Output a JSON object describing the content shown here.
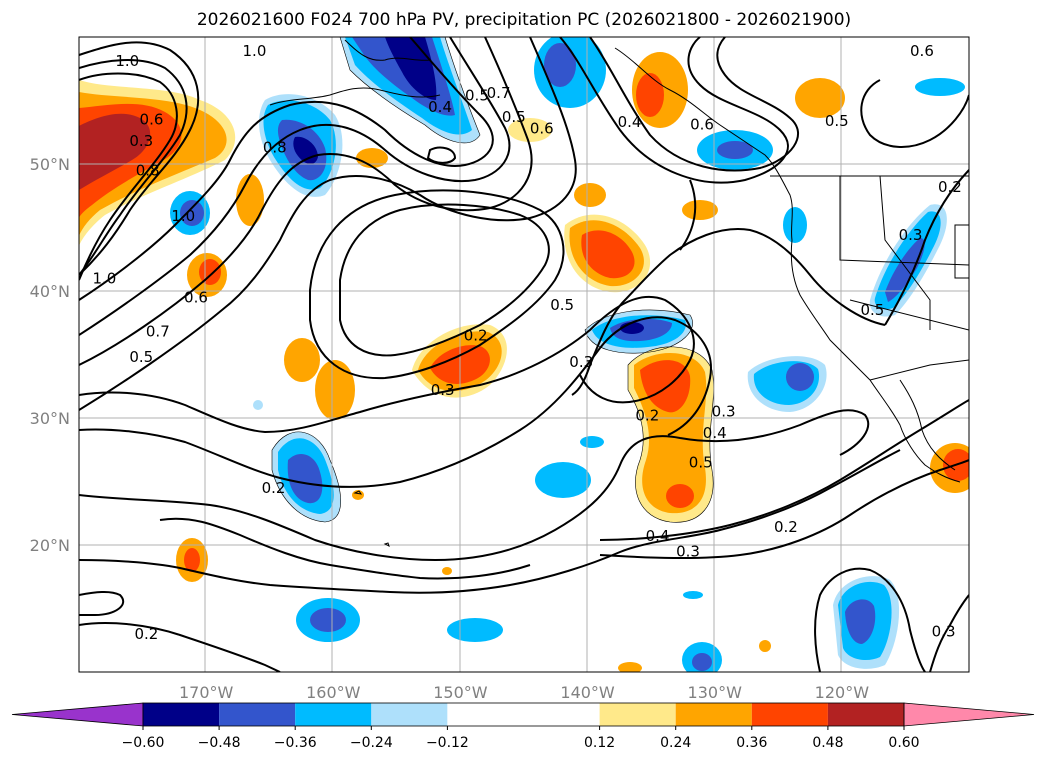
{
  "chart_data": {
    "type": "contour-map",
    "title": "2026021600 F024 700 hPa PV, precipitation PC (2026021800 - 2026021900)",
    "projection": "PlateCarree",
    "lon_range": [
      -180,
      -110
    ],
    "lat_range": [
      10,
      60
    ],
    "lon_ticks": [
      -170,
      -160,
      -150,
      -140,
      -130,
      -120
    ],
    "lon_tick_labels": [
      "170°W",
      "160°W",
      "150°W",
      "140°W",
      "130°W",
      "120°W"
    ],
    "lat_ticks": [
      20,
      30,
      40,
      50
    ],
    "lat_tick_labels": [
      "20°N",
      "30°N",
      "40°N",
      "50°N"
    ],
    "grid": true,
    "colorbar": {
      "orientation": "horizontal",
      "extend": "both",
      "boundaries": [
        -0.6,
        -0.48,
        -0.36,
        -0.24,
        -0.12,
        0.12,
        0.24,
        0.36,
        0.48,
        0.6
      ],
      "tick_labels": [
        "−0.60",
        "−0.48",
        "−0.36",
        "−0.24",
        "−0.12",
        "0.12",
        "0.24",
        "0.36",
        "0.48",
        "0.60"
      ],
      "colors": [
        "#9933cc",
        "#000088",
        "#3355cc",
        "#00bbff",
        "#aee0fb",
        "#ffffff",
        "#ffe98a",
        "#ffa500",
        "#ff4400",
        "#b22222",
        "#ff88aa"
      ]
    },
    "contour_labels": [
      {
        "text": "1.0",
        "lon": -176.2,
        "lat": 58.1
      },
      {
        "text": "0.6",
        "lon": -174.3,
        "lat": 53.5
      },
      {
        "text": "0.3",
        "lon": -175.1,
        "lat": 51.8
      },
      {
        "text": "0.8",
        "lon": -174.6,
        "lat": 49.5
      },
      {
        "text": "1.0",
        "lon": -166.2,
        "lat": 58.9
      },
      {
        "text": "0.8",
        "lon": -164.6,
        "lat": 51.3
      },
      {
        "text": "1.0",
        "lon": -171.8,
        "lat": 45.9
      },
      {
        "text": "1.0",
        "lon": -178.0,
        "lat": 41.0
      },
      {
        "text": "0.6",
        "lon": -170.8,
        "lat": 39.5
      },
      {
        "text": "0.7",
        "lon": -173.8,
        "lat": 36.8
      },
      {
        "text": "0.5",
        "lon": -175.1,
        "lat": 34.8
      },
      {
        "text": "0.4",
        "lon": -151.6,
        "lat": 54.5
      },
      {
        "text": "0.5",
        "lon": -148.7,
        "lat": 55.4
      },
      {
        "text": "0.7",
        "lon": -147.0,
        "lat": 55.6
      },
      {
        "text": "0.5",
        "lon": -145.8,
        "lat": 53.7
      },
      {
        "text": "0.6",
        "lon": -143.6,
        "lat": 52.8
      },
      {
        "text": "0.4",
        "lon": -136.7,
        "lat": 53.3
      },
      {
        "text": "0.6",
        "lon": -131.0,
        "lat": 53.1
      },
      {
        "text": "0.5",
        "lon": -120.4,
        "lat": 53.4
      },
      {
        "text": "0.6",
        "lon": -113.7,
        "lat": 58.9
      },
      {
        "text": "0.2",
        "lon": -111.5,
        "lat": 48.2
      },
      {
        "text": "0.3",
        "lon": -114.6,
        "lat": 44.4
      },
      {
        "text": "0.5",
        "lon": -117.6,
        "lat": 38.5
      },
      {
        "text": "0.2",
        "lon": -148.8,
        "lat": 36.5
      },
      {
        "text": "0.3",
        "lon": -151.4,
        "lat": 32.2
      },
      {
        "text": "0.5",
        "lon": -142.0,
        "lat": 38.9
      },
      {
        "text": "0.3",
        "lon": -140.5,
        "lat": 34.4
      },
      {
        "text": "0.2",
        "lon": -135.3,
        "lat": 30.2
      },
      {
        "text": "0.3",
        "lon": -129.3,
        "lat": 30.5
      },
      {
        "text": "0.4",
        "lon": -130.0,
        "lat": 28.8
      },
      {
        "text": "0.5",
        "lon": -131.1,
        "lat": 26.5
      },
      {
        "text": "0.2",
        "lon": -164.7,
        "lat": 24.5
      },
      {
        "text": "0.4",
        "lon": -134.5,
        "lat": 20.7
      },
      {
        "text": "0.3",
        "lon": -132.1,
        "lat": 19.5
      },
      {
        "text": "0.2",
        "lon": -124.4,
        "lat": 21.4
      },
      {
        "text": "0.2",
        "lon": -174.7,
        "lat": 13.0
      },
      {
        "text": "0.3",
        "lon": -112.0,
        "lat": 13.2
      }
    ],
    "precip_pc_anomalies": [
      {
        "sign": "positive",
        "max": 0.6,
        "lon": -176.0,
        "lat": 52.0
      },
      {
        "sign": "positive",
        "max": 0.4,
        "lon": -169.0,
        "lat": 52.5
      },
      {
        "sign": "positive",
        "max": 0.4,
        "lon": -139.0,
        "lat": 43.0
      },
      {
        "sign": "positive",
        "max": 0.4,
        "lon": -150.5,
        "lat": 34.3
      },
      {
        "sign": "positive",
        "max": 0.4,
        "lon": -132.5,
        "lat": 32.5
      },
      {
        "sign": "positive",
        "max": 0.4,
        "lon": -132.3,
        "lat": 24.0
      },
      {
        "sign": "positive",
        "max": 0.4,
        "lon": -130.5,
        "lat": 57.5
      },
      {
        "sign": "positive",
        "max": 0.4,
        "lon": -110.5,
        "lat": 26.0
      },
      {
        "sign": "positive",
        "max": 0.4,
        "lon": -170.5,
        "lat": 41.5
      },
      {
        "sign": "positive",
        "max": 0.4,
        "lon": -168.0,
        "lat": 18.5
      },
      {
        "sign": "negative",
        "min": -0.55,
        "lon": -153.5,
        "lat": 57.5
      },
      {
        "sign": "negative",
        "min": -0.48,
        "lon": -162.0,
        "lat": 51.0
      },
      {
        "sign": "negative",
        "min": -0.5,
        "lon": -138.5,
        "lat": 36.8
      },
      {
        "sign": "negative",
        "min": -0.4,
        "lon": -162.0,
        "lat": 26.5
      },
      {
        "sign": "negative",
        "min": -0.4,
        "lon": -115.0,
        "lat": 41.5
      },
      {
        "sign": "negative",
        "min": -0.4,
        "lon": -121.5,
        "lat": 14.0
      },
      {
        "sign": "negative",
        "min": -0.36,
        "lon": -125.0,
        "lat": 32.5
      }
    ]
  }
}
